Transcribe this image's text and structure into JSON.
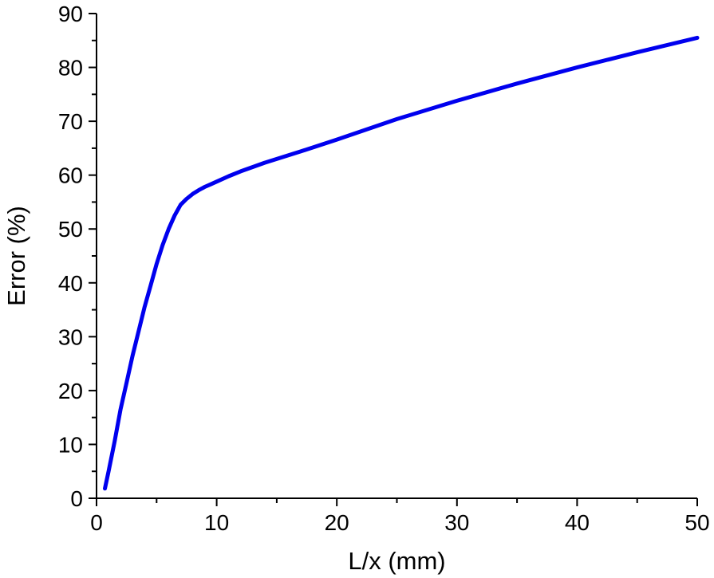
{
  "chart_data": {
    "type": "line",
    "title": "",
    "xlabel": "L/x (mm)",
    "ylabel": "Error (%)",
    "xlim": [
      0,
      50
    ],
    "ylim": [
      0,
      90
    ],
    "xticks": [
      0,
      10,
      20,
      30,
      40,
      50
    ],
    "yticks": [
      0,
      10,
      20,
      30,
      40,
      50,
      60,
      70,
      80,
      90
    ],
    "grid": false,
    "legend": "none",
    "series": [
      {
        "color": "#0000ee",
        "x": [
          0.7,
          1,
          1.5,
          2,
          2.5,
          3,
          3.5,
          4,
          4.5,
          5,
          5.5,
          6,
          6.5,
          7,
          7.5,
          8,
          8.5,
          9,
          9.5,
          10,
          11,
          12,
          13,
          14,
          15,
          17,
          20,
          25,
          30,
          35,
          40,
          45,
          50
        ],
        "y": [
          1.8,
          5,
          10.5,
          16.5,
          21.5,
          26.5,
          31,
          35.5,
          39.5,
          43.5,
          47,
          50,
          52.5,
          54.5,
          55.6,
          56.5,
          57.2,
          57.8,
          58.3,
          58.8,
          59.8,
          60.7,
          61.5,
          62.3,
          63,
          64.4,
          66.6,
          70.4,
          73.8,
          77,
          80,
          82.8,
          85.5
        ]
      }
    ]
  }
}
